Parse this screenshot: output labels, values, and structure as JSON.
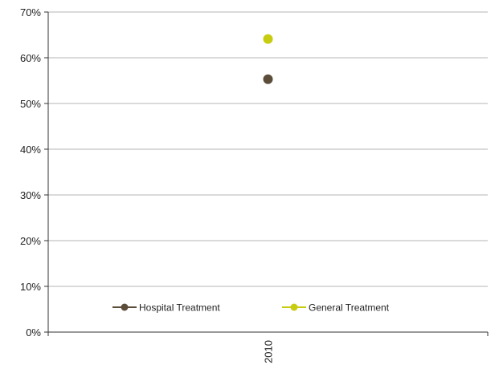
{
  "chart_data": {
    "type": "line",
    "x": [
      "2010"
    ],
    "series": [
      {
        "name": "Hospital Treatment",
        "values": [
          0.553
        ],
        "color": "#5b4d3a"
      },
      {
        "name": "General Treatment",
        "values": [
          0.641
        ],
        "color": "#c8cc10"
      }
    ],
    "yticks": [
      "0%",
      "10%",
      "20%",
      "30%",
      "40%",
      "50%",
      "60%",
      "70%"
    ],
    "ylim": [
      0,
      0.7
    ],
    "grid": true,
    "legend_position": "bottom-inside",
    "title": "",
    "xlabel": "",
    "ylabel": ""
  }
}
